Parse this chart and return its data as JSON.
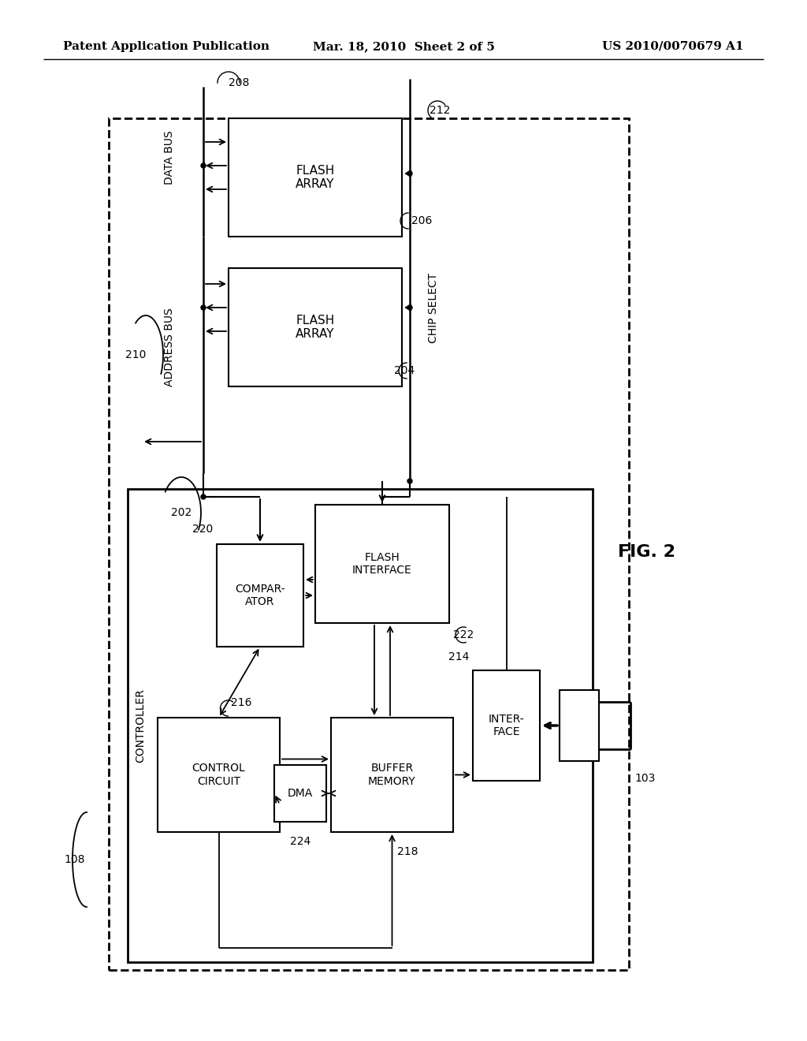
{
  "title_left": "Patent Application Publication",
  "title_mid": "Mar. 18, 2010  Sheet 2 of 5",
  "title_right": "US 2010/0070679 A1",
  "fig_label": "FIG. 2",
  "background": "#ffffff",
  "lc": "#000000"
}
